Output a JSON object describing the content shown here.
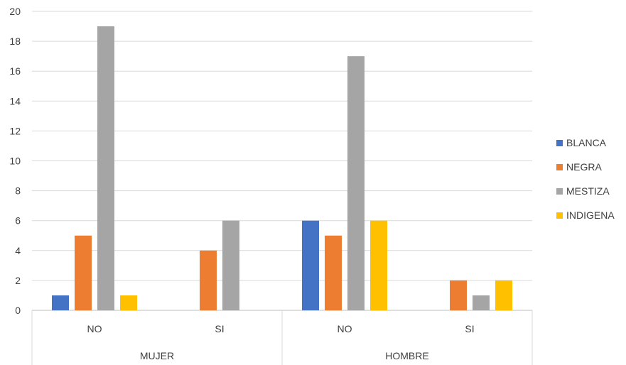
{
  "chart_data": {
    "type": "bar",
    "groups": [
      {
        "label": "MUJER",
        "categories": [
          "NO",
          "SI"
        ]
      },
      {
        "label": "HOMBRE",
        "categories": [
          "NO",
          "SI"
        ]
      }
    ],
    "series": [
      {
        "name": "BLANCA",
        "color": "#4472C4",
        "values": [
          1,
          0,
          6,
          0
        ]
      },
      {
        "name": "NEGRA",
        "color": "#ED7D31",
        "values": [
          5,
          4,
          5,
          2
        ]
      },
      {
        "name": "MESTIZA",
        "color": "#A5A5A5",
        "values": [
          19,
          6,
          17,
          1
        ]
      },
      {
        "name": "INDIGENA",
        "color": "#FFC000",
        "values": [
          1,
          0,
          6,
          2
        ]
      }
    ],
    "ylim": [
      0,
      20
    ],
    "yticks": [
      0,
      2,
      4,
      6,
      8,
      10,
      12,
      14,
      16,
      18,
      20
    ],
    "grid": true,
    "legend_position": "right"
  }
}
